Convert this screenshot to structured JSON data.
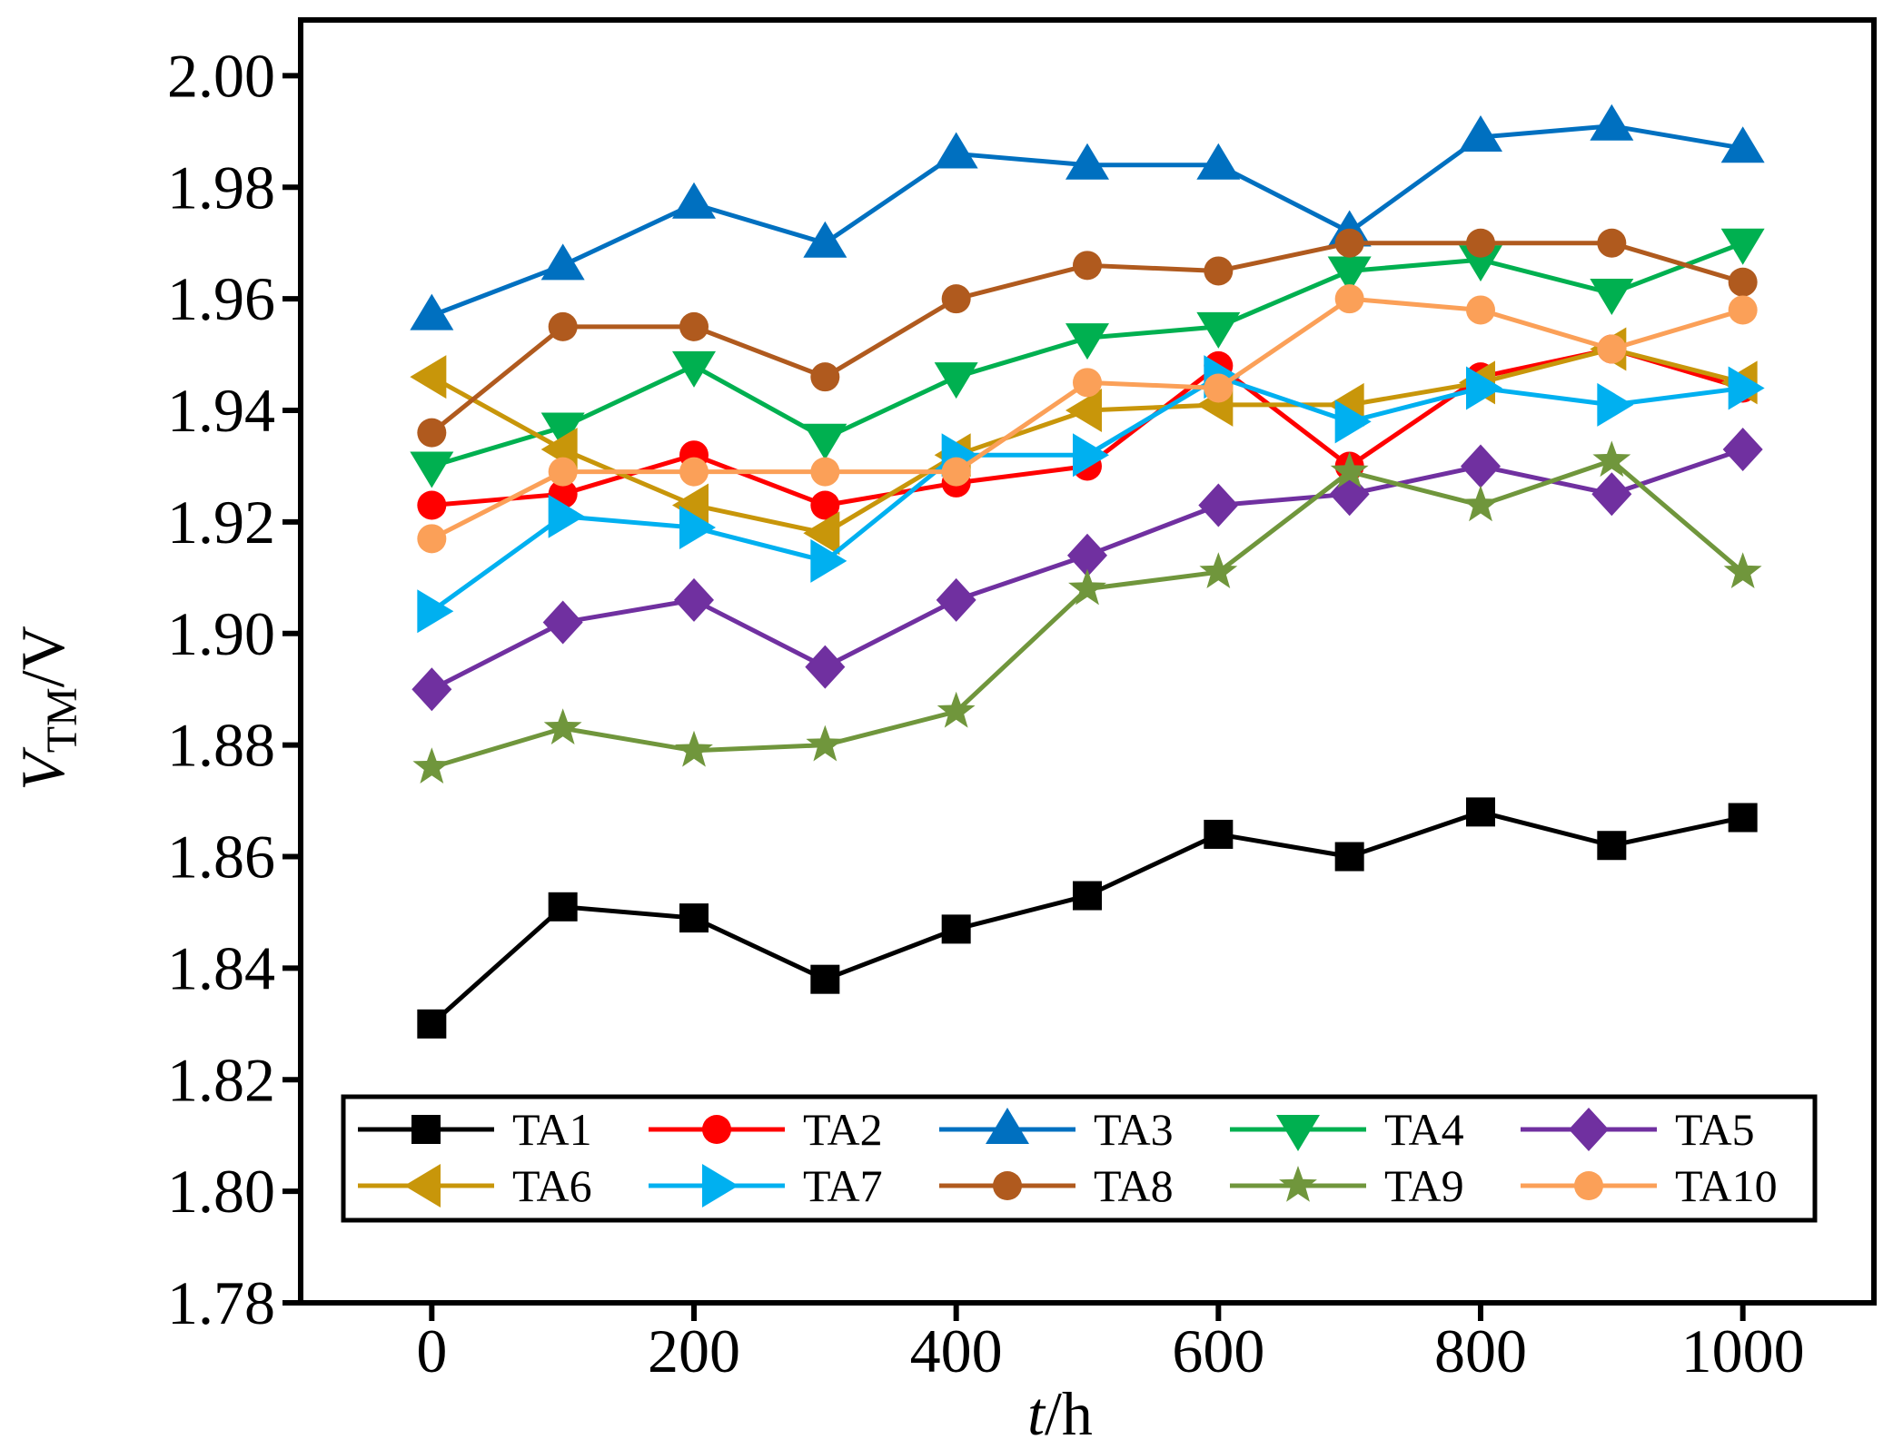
{
  "chart_data": {
    "type": "line",
    "xlabel": {
      "italic": "t",
      "rest": "/h"
    },
    "ylabel": {
      "italic": "V",
      "sub": "TM",
      "rest": "/V"
    },
    "x": [
      0,
      100,
      200,
      300,
      400,
      500,
      600,
      700,
      800,
      900,
      1000
    ],
    "xlim": [
      -100,
      1100
    ],
    "ylim": [
      1.78,
      2.01
    ],
    "xticks": [
      0,
      200,
      400,
      600,
      800,
      1000
    ],
    "xtick_labels": [
      "0",
      "200",
      "400",
      "600",
      "800",
      "1000"
    ],
    "yticks": [
      1.78,
      1.8,
      1.82,
      1.84,
      1.86,
      1.88,
      1.9,
      1.92,
      1.94,
      1.96,
      1.98,
      2.0
    ],
    "ytick_labels": [
      "1.78",
      "1.80",
      "1.82",
      "1.84",
      "1.86",
      "1.88",
      "1.90",
      "1.92",
      "1.94",
      "1.96",
      "1.98",
      "2.00"
    ],
    "legend_position": "bottom",
    "series": [
      {
        "name": "TA1",
        "color": "#000000",
        "marker": "square",
        "values": [
          1.83,
          1.851,
          1.849,
          1.838,
          1.847,
          1.853,
          1.864,
          1.86,
          1.868,
          1.862,
          1.867
        ]
      },
      {
        "name": "TA2",
        "color": "#ff0000",
        "marker": "circle",
        "values": [
          1.923,
          1.925,
          1.932,
          1.923,
          1.927,
          1.93,
          1.948,
          1.93,
          1.946,
          1.951,
          1.944
        ]
      },
      {
        "name": "TA3",
        "color": "#0070c0",
        "marker": "triangle-up",
        "values": [
          1.957,
          1.966,
          1.977,
          1.97,
          1.986,
          1.984,
          1.984,
          1.972,
          1.989,
          1.991,
          1.987
        ]
      },
      {
        "name": "TA4",
        "color": "#00b050",
        "marker": "triangle-down",
        "values": [
          1.93,
          1.937,
          1.948,
          1.935,
          1.946,
          1.953,
          1.955,
          1.965,
          1.967,
          1.961,
          1.97
        ]
      },
      {
        "name": "TA5",
        "color": "#7030a0",
        "marker": "diamond",
        "values": [
          1.89,
          1.902,
          1.906,
          1.894,
          1.906,
          1.914,
          1.923,
          1.925,
          1.93,
          1.925,
          1.933
        ]
      },
      {
        "name": "TA6",
        "color": "#c8960a",
        "marker": "triangle-left",
        "values": [
          1.946,
          1.933,
          1.923,
          1.918,
          1.932,
          1.94,
          1.941,
          1.941,
          1.945,
          1.951,
          1.945
        ]
      },
      {
        "name": "TA7",
        "color": "#00b0f0",
        "marker": "triangle-right",
        "values": [
          1.904,
          1.921,
          1.919,
          1.913,
          1.932,
          1.932,
          1.946,
          1.938,
          1.944,
          1.941,
          1.944
        ]
      },
      {
        "name": "TA8",
        "color": "#b05a1e",
        "marker": "circle",
        "values": [
          1.936,
          1.955,
          1.955,
          1.946,
          1.96,
          1.966,
          1.965,
          1.97,
          1.97,
          1.97,
          1.963
        ]
      },
      {
        "name": "TA9",
        "color": "#70963c",
        "marker": "star",
        "values": [
          1.876,
          1.883,
          1.879,
          1.88,
          1.886,
          1.908,
          1.911,
          1.929,
          1.923,
          1.931,
          1.911
        ]
      },
      {
        "name": "TA10",
        "color": "#fba058",
        "marker": "circle",
        "values": [
          1.917,
          1.929,
          1.929,
          1.929,
          1.929,
          1.945,
          1.944,
          1.96,
          1.958,
          1.951,
          1.958
        ]
      }
    ]
  }
}
